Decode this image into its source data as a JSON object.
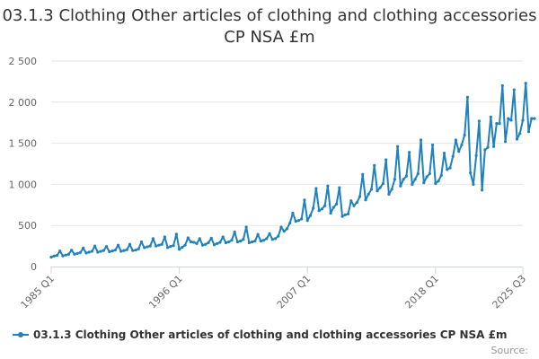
{
  "colors": {
    "series": "#1f81bd",
    "grid": "#e6e6e6",
    "axis": "#ccd6eb"
  },
  "credits": "Source:",
  "chart_data": {
    "type": "line",
    "title": "03.1.3 Clothing Other articles of clothing and clothing accessories CP NSA £m",
    "xlabel": "",
    "ylabel": "",
    "ylim": [
      0,
      2500
    ],
    "y_ticks": [
      "0",
      "500",
      "1 000",
      "1 500",
      "2 000",
      "2 500"
    ],
    "y_tick_values": [
      0,
      500,
      1000,
      1500,
      2000,
      2500
    ],
    "x_tick_labels": [
      "1985 Q1",
      "1996 Q1",
      "2007 Q1",
      "2018 Q1",
      "2025 Q3"
    ],
    "x_range": [
      "1985 Q1",
      "2025 Q3"
    ],
    "grid": true,
    "legend_position": "bottom-left",
    "series": [
      {
        "name": "03.1.3 Clothing Other articles of clothing and clothing accessories CP NSA £m",
        "x_start": "1985 Q1",
        "frequency": "quarterly",
        "values": [
          115,
          128,
          135,
          190,
          130,
          140,
          150,
          200,
          150,
          160,
          170,
          225,
          165,
          175,
          185,
          250,
          175,
          185,
          195,
          245,
          180,
          190,
          200,
          260,
          185,
          195,
          205,
          270,
          195,
          200,
          215,
          300,
          230,
          240,
          250,
          340,
          250,
          260,
          270,
          360,
          230,
          245,
          255,
          395,
          210,
          235,
          260,
          350,
          300,
          295,
          280,
          340,
          260,
          270,
          290,
          345,
          265,
          280,
          295,
          360,
          290,
          300,
          320,
          420,
          300,
          310,
          330,
          480,
          290,
          300,
          310,
          390,
          310,
          320,
          340,
          400,
          330,
          340,
          370,
          480,
          430,
          460,
          530,
          650,
          550,
          560,
          580,
          810,
          560,
          620,
          710,
          950,
          680,
          700,
          740,
          980,
          650,
          720,
          760,
          960,
          610,
          630,
          640,
          800,
          740,
          780,
          850,
          1120,
          810,
          880,
          940,
          1230,
          920,
          960,
          1010,
          1300,
          880,
          940,
          1060,
          1460,
          980,
          1060,
          1100,
          1390,
          1000,
          1060,
          1130,
          1540,
          1020,
          1090,
          1130,
          1480,
          1010,
          1040,
          1110,
          1380,
          1180,
          1200,
          1340,
          1540,
          1400,
          1480,
          1600,
          2060,
          1140,
          1000,
          1350,
          1770,
          930,
          1420,
          1450,
          1820,
          1460,
          1740,
          1740,
          2200,
          1520,
          1800,
          1780,
          2150,
          1550,
          1620,
          1780,
          2230,
          1640,
          1800,
          1800
        ]
      }
    ]
  }
}
